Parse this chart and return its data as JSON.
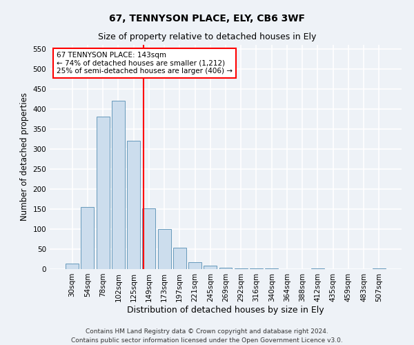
{
  "title1": "67, TENNYSON PLACE, ELY, CB6 3WF",
  "title2": "Size of property relative to detached houses in Ely",
  "xlabel": "Distribution of detached houses by size in Ely",
  "ylabel": "Number of detached properties",
  "categories": [
    "30sqm",
    "54sqm",
    "78sqm",
    "102sqm",
    "125sqm",
    "149sqm",
    "173sqm",
    "197sqm",
    "221sqm",
    "245sqm",
    "269sqm",
    "292sqm",
    "316sqm",
    "340sqm",
    "364sqm",
    "388sqm",
    "412sqm",
    "435sqm",
    "459sqm",
    "483sqm",
    "507sqm"
  ],
  "values": [
    13,
    155,
    380,
    420,
    320,
    152,
    100,
    53,
    18,
    9,
    4,
    2,
    2,
    1,
    0,
    0,
    1,
    0,
    0,
    0,
    1
  ],
  "bar_color": "#ccdded",
  "bar_edge_color": "#6699bb",
  "vline_color": "red",
  "vline_index": 4.65,
  "annotation_text": "67 TENNYSON PLACE: 143sqm\n← 74% of detached houses are smaller (1,212)\n25% of semi-detached houses are larger (406) →",
  "annotation_box_color": "white",
  "annotation_box_edge_color": "red",
  "ylim": [
    0,
    560
  ],
  "yticks": [
    0,
    50,
    100,
    150,
    200,
    250,
    300,
    350,
    400,
    450,
    500,
    550
  ],
  "footer": "Contains HM Land Registry data © Crown copyright and database right 2024.\nContains public sector information licensed under the Open Government Licence v3.0.",
  "background_color": "#eef2f7",
  "grid_color": "white",
  "title_fontsize": 10,
  "subtitle_fontsize": 9,
  "axis_label_fontsize": 8.5,
  "tick_fontsize": 7.5,
  "annotation_fontsize": 7.5,
  "footer_fontsize": 6.5
}
